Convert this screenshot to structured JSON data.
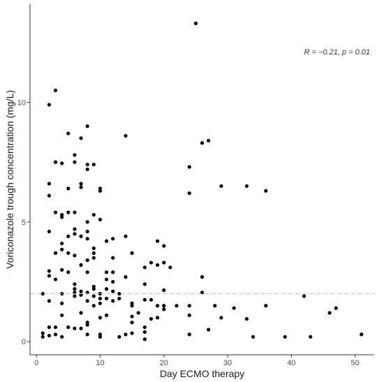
{
  "chart_data": {
    "type": "scatter",
    "xlabel": "Day ECMO therapy",
    "ylabel": "Voriconazole trough concentration (mg/L)",
    "xlim": [
      -1,
      53
    ],
    "ylim": [
      -0.55,
      14.1
    ],
    "x_ticks": [
      0,
      10,
      20,
      30,
      40,
      50
    ],
    "y_ticks": [
      0,
      5,
      10
    ],
    "grid": false,
    "reference_line": {
      "y": 2.0,
      "style": "dashed",
      "color": "#bdbdbd"
    },
    "annotation": "R = −0.21, p = 0.01",
    "point_color": "#000000",
    "points": [
      [
        1,
        2.0
      ],
      [
        1,
        0.35
      ],
      [
        1,
        0.2
      ],
      [
        2,
        9.9
      ],
      [
        2,
        6.6
      ],
      [
        2,
        6.1
      ],
      [
        2,
        4.6
      ],
      [
        2,
        2.95
      ],
      [
        2,
        2.75
      ],
      [
        2,
        1.7
      ],
      [
        2,
        0.6
      ],
      [
        2,
        0.25
      ],
      [
        3,
        10.5
      ],
      [
        3,
        7.5
      ],
      [
        3,
        5.4
      ],
      [
        3,
        3.7
      ],
      [
        3,
        2.6
      ],
      [
        3,
        0.6
      ],
      [
        3,
        0.3
      ],
      [
        4,
        7.45
      ],
      [
        4,
        5.3
      ],
      [
        4,
        5.2
      ],
      [
        4,
        4.1
      ],
      [
        4,
        3.85
      ],
      [
        4,
        3.0
      ],
      [
        4,
        2.0
      ],
      [
        4,
        1.6
      ],
      [
        4,
        1.1
      ],
      [
        4,
        0.2
      ],
      [
        5,
        8.7
      ],
      [
        5,
        6.4
      ],
      [
        5,
        5.4
      ],
      [
        5,
        4.4
      ],
      [
        5,
        3.7
      ],
      [
        5,
        2.9
      ],
      [
        5,
        0.6
      ],
      [
        6,
        7.8
      ],
      [
        6,
        7.5
      ],
      [
        6,
        5.4
      ],
      [
        6,
        4.7
      ],
      [
        6,
        4.5
      ],
      [
        6,
        3.6
      ],
      [
        6,
        2.4
      ],
      [
        6,
        2.2
      ],
      [
        6,
        2.05
      ],
      [
        6,
        1.9
      ],
      [
        6,
        0.55
      ],
      [
        7,
        8.5
      ],
      [
        7,
        6.6
      ],
      [
        7,
        6.45
      ],
      [
        7,
        4.4
      ],
      [
        7,
        3.2
      ],
      [
        7,
        2.1
      ],
      [
        7,
        1.95
      ],
      [
        7,
        1.2
      ],
      [
        7,
        0.55
      ],
      [
        8,
        9.0
      ],
      [
        8,
        7.4
      ],
      [
        8,
        7.2
      ],
      [
        8,
        5.0
      ],
      [
        8,
        4.6
      ],
      [
        8,
        4.3
      ],
      [
        8,
        3.4
      ],
      [
        8,
        2.9
      ],
      [
        8,
        2.05
      ],
      [
        8,
        1.7
      ],
      [
        8,
        0.8
      ],
      [
        8,
        0.7
      ],
      [
        8,
        0.3
      ],
      [
        9,
        7.4
      ],
      [
        9,
        5.3
      ],
      [
        9,
        3.9
      ],
      [
        9,
        3.7
      ],
      [
        9,
        3.5
      ],
      [
        9,
        2.3
      ],
      [
        9,
        2.2
      ],
      [
        9,
        1.9
      ],
      [
        9,
        1.5
      ],
      [
        10,
        6.4
      ],
      [
        10,
        6.3
      ],
      [
        10,
        5.1
      ],
      [
        10,
        2.0
      ],
      [
        10,
        1.8
      ],
      [
        10,
        1.6
      ],
      [
        10,
        1.0
      ],
      [
        10,
        0.3
      ],
      [
        10,
        0.2
      ],
      [
        11,
        4.2
      ],
      [
        11,
        2.9
      ],
      [
        11,
        2.6
      ],
      [
        11,
        2.2
      ],
      [
        11,
        1.8
      ],
      [
        11,
        1.1
      ],
      [
        12,
        4.3
      ],
      [
        12,
        3.5
      ],
      [
        12,
        2.9
      ],
      [
        12,
        2.5
      ],
      [
        12,
        2.1
      ],
      [
        12,
        1.7
      ],
      [
        13,
        2.0
      ],
      [
        13,
        1.8
      ],
      [
        13,
        0.2
      ],
      [
        14,
        8.6
      ],
      [
        14,
        4.4
      ],
      [
        14,
        2.7
      ],
      [
        14,
        0.3
      ],
      [
        15,
        3.7
      ],
      [
        15,
        1.6
      ],
      [
        15,
        1.5
      ],
      [
        15,
        1.05
      ],
      [
        15,
        0.8
      ],
      [
        15,
        0.35
      ],
      [
        16,
        1.2
      ],
      [
        17,
        3.1
      ],
      [
        17,
        2.4
      ],
      [
        17,
        1.75
      ],
      [
        17,
        0.6
      ],
      [
        17,
        0.4
      ],
      [
        17,
        0.1
      ],
      [
        18,
        3.3
      ],
      [
        18,
        1.75
      ],
      [
        18,
        0.95
      ],
      [
        19,
        4.2
      ],
      [
        19,
        3.2
      ],
      [
        19,
        1.5
      ],
      [
        19,
        1.0
      ],
      [
        20,
        4.0
      ],
      [
        20,
        3.3
      ],
      [
        20,
        2.15
      ],
      [
        20,
        1.5
      ],
      [
        20,
        1.35
      ],
      [
        21,
        3.1
      ],
      [
        22,
        1.5
      ],
      [
        24,
        7.3
      ],
      [
        24,
        6.2
      ],
      [
        24,
        1.5
      ],
      [
        24,
        1.1
      ],
      [
        24,
        0.3
      ],
      [
        25,
        13.3
      ],
      [
        26,
        8.3
      ],
      [
        26,
        2.7
      ],
      [
        26,
        2.05
      ],
      [
        27,
        8.4
      ],
      [
        27,
        0.5
      ],
      [
        28,
        1.5
      ],
      [
        29,
        6.5
      ],
      [
        29,
        1.0
      ],
      [
        31,
        1.4
      ],
      [
        33,
        6.5
      ],
      [
        33,
        0.95
      ],
      [
        34,
        0.2
      ],
      [
        36,
        6.3
      ],
      [
        36,
        1.5
      ],
      [
        39,
        0.2
      ],
      [
        42,
        1.9
      ],
      [
        43,
        0.2
      ],
      [
        46,
        1.2
      ],
      [
        47,
        1.4
      ],
      [
        51,
        0.3
      ]
    ]
  }
}
